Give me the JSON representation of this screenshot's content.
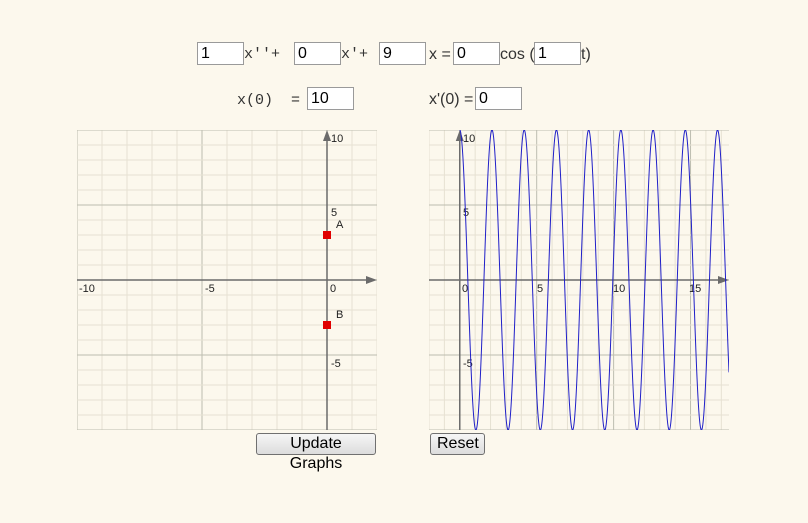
{
  "equation": {
    "coef_a": "1",
    "term_a": "x''+",
    "coef_b": "0",
    "term_b": "x'+",
    "coef_c": "9",
    "term_c": "x =",
    "amplitude": "0",
    "cos_label": "cos (",
    "omega": "1",
    "t_close": "t)"
  },
  "initial": {
    "x0_label": "x(0)  =",
    "x0_value": "10",
    "v0_label": "x'(0) =",
    "v0_value": "0"
  },
  "phase_graph": {
    "x_ticks": [
      "-10",
      "-5",
      "0"
    ],
    "y_ticks": [
      "10",
      "5",
      "-5"
    ],
    "xlim": [
      -10,
      2
    ],
    "ylim": [
      -10,
      10
    ],
    "points": [
      {
        "label": "A",
        "x": 0,
        "y": 3,
        "color": "#e00000"
      },
      {
        "label": "B",
        "x": 0,
        "y": -3,
        "color": "#e00000"
      }
    ]
  },
  "chart_data": {
    "type": "line",
    "title": "",
    "xlabel": "",
    "ylabel": "",
    "xlim": [
      -2,
      17.5
    ],
    "ylim": [
      -10,
      10
    ],
    "grid": true,
    "x_ticks": [
      "0",
      "5",
      "10",
      "15"
    ],
    "y_ticks": [
      "10",
      "5",
      "-5"
    ],
    "series": [
      {
        "amplitude": 10,
        "angular_frequency": 3,
        "function": "10cos(3t)",
        "t_range": [
          0,
          17.5
        ],
        "color": "#1f1fc8"
      }
    ]
  },
  "buttons": {
    "update": "Update Graphs",
    "reset": "Reset"
  }
}
